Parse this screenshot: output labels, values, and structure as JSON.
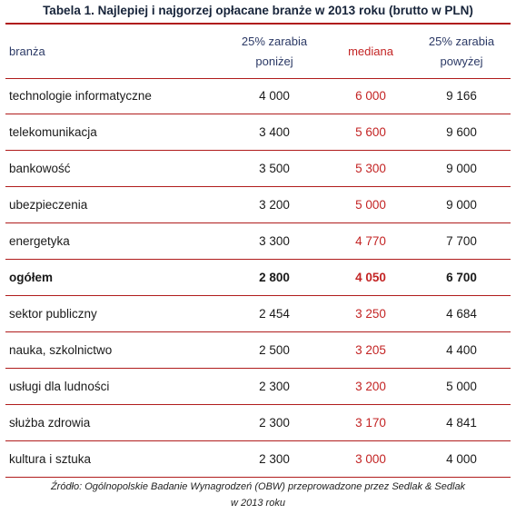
{
  "title": "Tabela 1. Najlepiej i najgorzej opłacane branże w 2013 roku (brutto w PLN)",
  "columns": {
    "name": "branża",
    "low_line1": "25% zarabia",
    "low_line2": "poniżej",
    "median": "mediana",
    "high_line1": "25% zarabia",
    "high_line2": "powyżej"
  },
  "rows": [
    {
      "name": "technologie informatyczne",
      "low": "4 000",
      "median": "6 000",
      "high": "9 166"
    },
    {
      "name": "telekomunikacja",
      "low": "3 400",
      "median": "5 600",
      "high": "9 600"
    },
    {
      "name": "bankowość",
      "low": "3 500",
      "median": "5 300",
      "high": "9 000"
    },
    {
      "name": "ubezpieczenia",
      "low": "3 200",
      "median": "5 000",
      "high": "9 000"
    },
    {
      "name": "energetyka",
      "low": "3 300",
      "median": "4 770",
      "high": "7 700"
    },
    {
      "name": "ogółem",
      "low": "2 800",
      "median": "4 050",
      "high": "6 700",
      "bold": true
    },
    {
      "name": "sektor publiczny",
      "low": "2 454",
      "median": "3 250",
      "high": "4 684"
    },
    {
      "name": "nauka, szkolnictwo",
      "low": "2 500",
      "median": "3 205",
      "high": "4 400"
    },
    {
      "name": "usługi dla ludności",
      "low": "2 300",
      "median": "3 200",
      "high": "5 000"
    },
    {
      "name": "służba zdrowia",
      "low": "2 300",
      "median": "3 170",
      "high": "4 841"
    },
    {
      "name": "kultura i sztuka",
      "low": "2 300",
      "median": "3 000",
      "high": "4 000"
    }
  ],
  "source_line1": "Źródło: Ogólnopolskie Badanie Wynagrodzeń (OBW) przeprowadzone przez Sedlak & Sedlak",
  "source_line2": "w 2013 roku",
  "colors": {
    "accent_red": "#c32424",
    "rule_red": "#b01c1c",
    "header_blue": "#2c3a66"
  }
}
